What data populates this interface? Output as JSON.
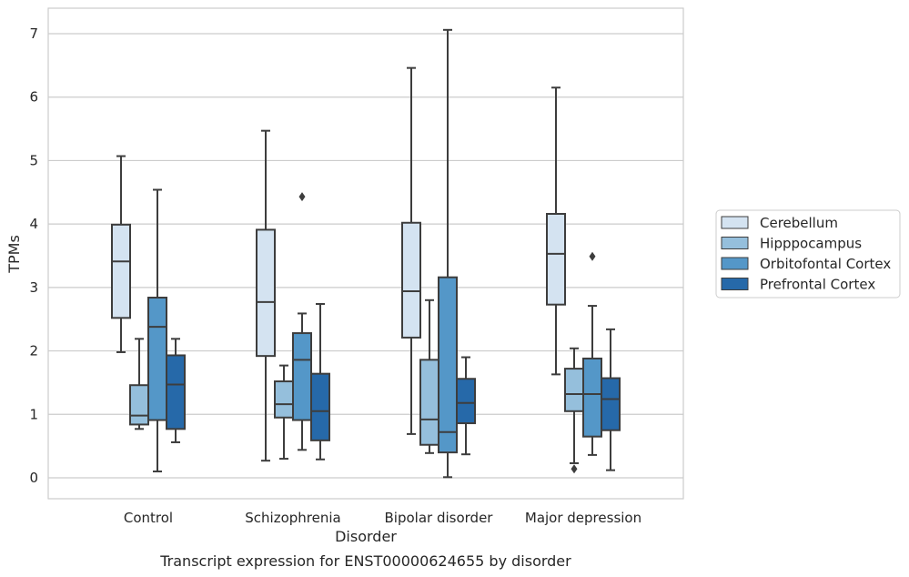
{
  "chart_data": {
    "type": "box",
    "title": "",
    "caption": "Transcript expression for ENST00000624655 by disorder",
    "xlabel": "Disorder",
    "ylabel": "TPMs",
    "ylim": [
      -0.33,
      7.4
    ],
    "yticks": [
      "0",
      "1",
      "2",
      "3",
      "4",
      "5",
      "6",
      "7"
    ],
    "grid": true,
    "legend_position": "center-right",
    "categories": [
      "Control",
      "Schizophrenia",
      "Bipolar disorder",
      "Major depression"
    ],
    "series": [
      {
        "name": "Cerebellum",
        "color": "#d4e3f1",
        "boxes": [
          {
            "whisker_low": 1.98,
            "q1": 2.52,
            "median": 3.41,
            "q3": 3.99,
            "whisker_high": 5.07,
            "outliers": []
          },
          {
            "whisker_low": 0.27,
            "q1": 1.92,
            "median": 2.77,
            "q3": 3.91,
            "whisker_high": 5.47,
            "outliers": []
          },
          {
            "whisker_low": 0.69,
            "q1": 2.21,
            "median": 2.94,
            "q3": 4.02,
            "whisker_high": 6.46,
            "outliers": []
          },
          {
            "whisker_low": 1.63,
            "q1": 2.73,
            "median": 3.53,
            "q3": 4.16,
            "whisker_high": 6.15,
            "outliers": []
          }
        ]
      },
      {
        "name": "Hipppocampus",
        "color": "#95bfdc",
        "boxes": [
          {
            "whisker_low": 0.77,
            "q1": 0.84,
            "median": 0.98,
            "q3": 1.46,
            "whisker_high": 2.19,
            "outliers": []
          },
          {
            "whisker_low": 0.3,
            "q1": 0.95,
            "median": 1.16,
            "q3": 1.52,
            "whisker_high": 1.77,
            "outliers": []
          },
          {
            "whisker_low": 0.39,
            "q1": 0.52,
            "median": 0.92,
            "q3": 1.86,
            "whisker_high": 2.8,
            "outliers": []
          },
          {
            "whisker_low": 0.23,
            "q1": 1.05,
            "median": 1.32,
            "q3": 1.72,
            "whisker_high": 2.04,
            "outliers": [
              0.14
            ]
          }
        ]
      },
      {
        "name": "Orbitofontal Cortex",
        "color": "#5497c8",
        "boxes": [
          {
            "whisker_low": 0.1,
            "q1": 0.91,
            "median": 2.38,
            "q3": 2.84,
            "whisker_high": 4.54,
            "outliers": []
          },
          {
            "whisker_low": 0.44,
            "q1": 0.91,
            "median": 1.86,
            "q3": 2.28,
            "whisker_high": 2.59,
            "outliers": [
              4.43
            ]
          },
          {
            "whisker_low": 0.01,
            "q1": 0.4,
            "median": 0.72,
            "q3": 3.16,
            "whisker_high": 7.06,
            "outliers": []
          },
          {
            "whisker_low": 0.36,
            "q1": 0.65,
            "median": 1.32,
            "q3": 1.88,
            "whisker_high": 2.71,
            "outliers": [
              3.49
            ]
          }
        ]
      },
      {
        "name": "Prefrontal Cortex",
        "color": "#2669a9",
        "boxes": [
          {
            "whisker_low": 0.56,
            "q1": 0.77,
            "median": 1.47,
            "q3": 1.93,
            "whisker_high": 2.19,
            "outliers": []
          },
          {
            "whisker_low": 0.29,
            "q1": 0.59,
            "median": 1.05,
            "q3": 1.64,
            "whisker_high": 2.74,
            "outliers": []
          },
          {
            "whisker_low": 0.37,
            "q1": 0.86,
            "median": 1.18,
            "q3": 1.56,
            "whisker_high": 1.9,
            "outliers": []
          },
          {
            "whisker_low": 0.12,
            "q1": 0.75,
            "median": 1.24,
            "q3": 1.57,
            "whisker_high": 2.34,
            "outliers": []
          }
        ]
      }
    ]
  }
}
